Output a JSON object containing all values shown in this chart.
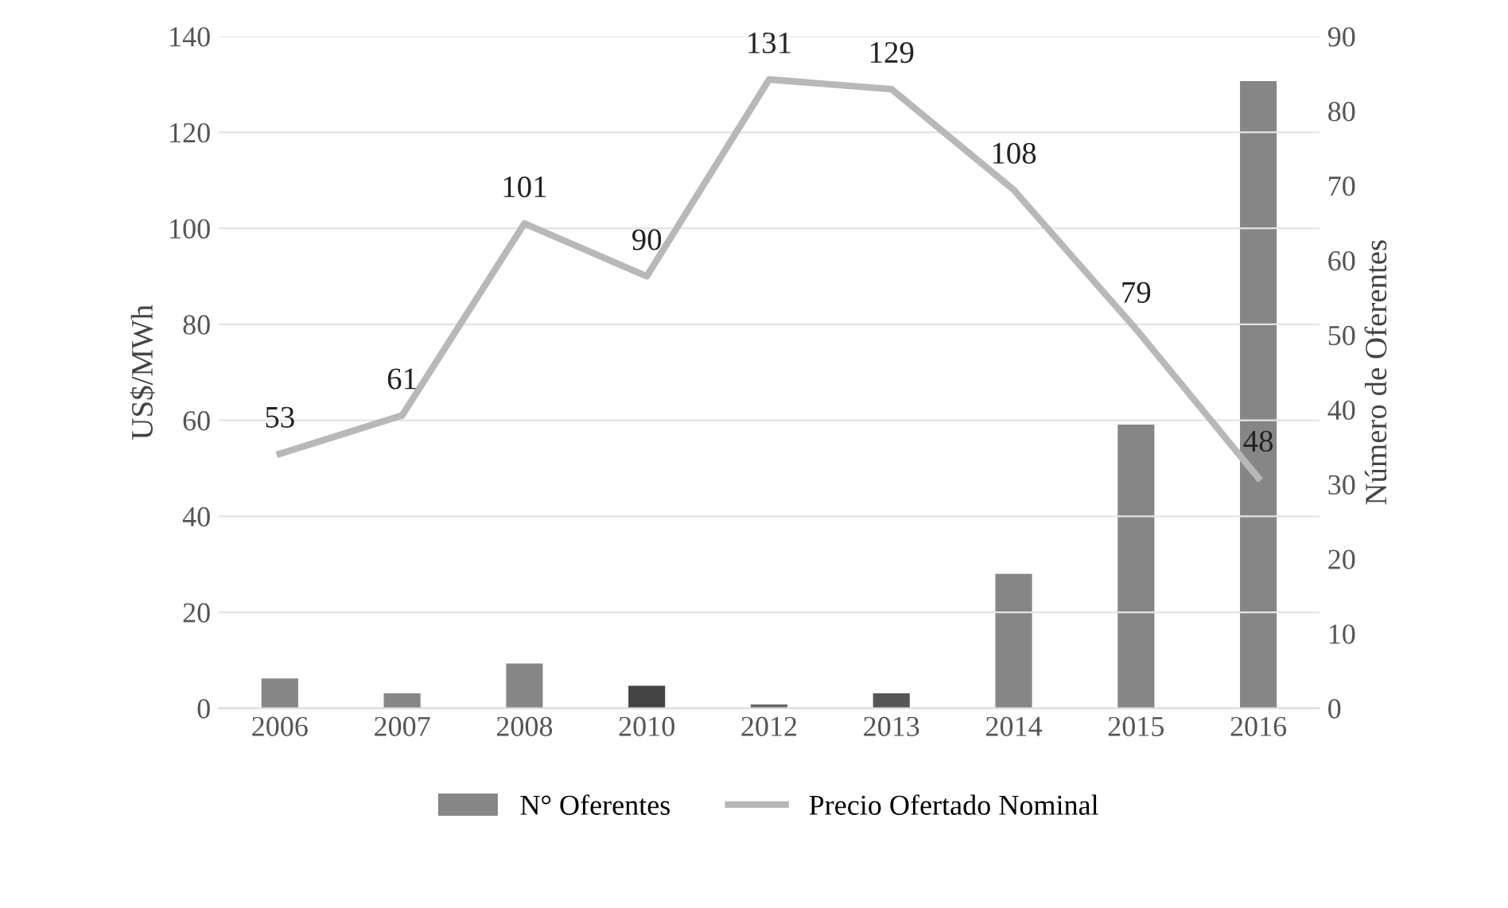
{
  "chart_data": {
    "type": "bar",
    "categories": [
      "2006",
      "2007",
      "2008",
      "2010",
      "2012",
      "2013",
      "2014",
      "2015",
      "2016"
    ],
    "ylabel": "US$/MWh",
    "y2label": "Número de Oferentes",
    "series": [
      {
        "name": "N° Oferentes",
        "axis": "y2",
        "color": "#868686",
        "colors": [
          "#868686",
          "#868686",
          "#868686",
          "#444444",
          "#666666",
          "#555555",
          "#868686",
          "#868686",
          "#868686"
        ],
        "values": [
          4,
          2,
          6,
          3,
          0.5,
          2,
          18,
          38,
          84
        ]
      },
      {
        "name": "Precio Ofertado Nominal",
        "type": "line",
        "axis": "y",
        "color": "#b8b8b8",
        "values": [
          53,
          61,
          101,
          90,
          131,
          129,
          108,
          79,
          48
        ],
        "data_labels": true
      }
    ],
    "ylim": [
      0,
      140
    ],
    "yticks": [
      0,
      20,
      40,
      60,
      80,
      100,
      120,
      140
    ],
    "y2lim": [
      0,
      90
    ],
    "y2ticks": [
      0,
      10,
      20,
      30,
      40,
      50,
      60,
      70,
      80,
      90
    ],
    "grid": "y",
    "legend": "bottom"
  }
}
